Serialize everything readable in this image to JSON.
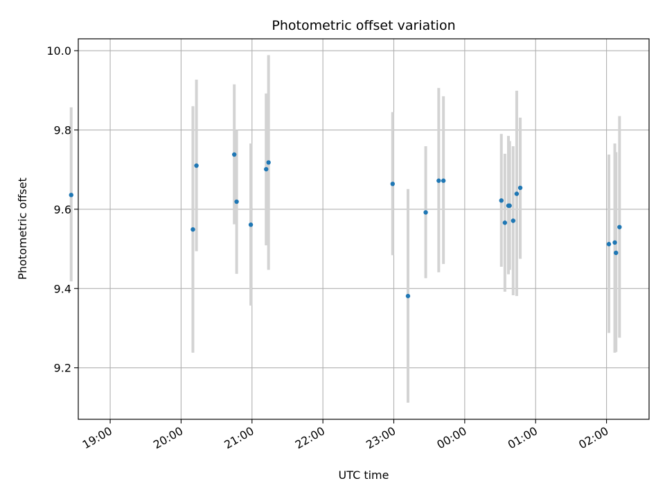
{
  "chart_data": {
    "type": "scatter",
    "title": "Photometric offset variation",
    "xlabel": "UTC time",
    "ylabel": "Photometric offset",
    "xlim": [
      "18:33",
      "02:36"
    ],
    "ylim": [
      9.07,
      10.03
    ],
    "grid": true,
    "x_ticks": [
      "19:00",
      "20:00",
      "21:00",
      "22:00",
      "23:00",
      "00:00",
      "01:00",
      "02:00"
    ],
    "y_ticks": [
      9.2,
      9.4,
      9.6,
      9.8,
      10.0
    ],
    "y_tick_labels": [
      "9.2",
      "9.4",
      "9.6",
      "9.8",
      "10.0"
    ],
    "colors": {
      "point": "#1f77b4",
      "errorbar": "#d3d3d3",
      "grid": "#b0b0b0",
      "axis": "#000000"
    },
    "points": [
      {
        "time": "18:27",
        "y": 9.636,
        "yerr_low": 9.418,
        "yerr_high": 9.857
      },
      {
        "time": "20:10",
        "y": 9.549,
        "yerr_low": 9.238,
        "yerr_high": 9.86
      },
      {
        "time": "20:13",
        "y": 9.71,
        "yerr_low": 9.494,
        "yerr_high": 9.927
      },
      {
        "time": "20:45",
        "y": 9.738,
        "yerr_low": 9.562,
        "yerr_high": 9.915
      },
      {
        "time": "20:47",
        "y": 9.619,
        "yerr_low": 9.437,
        "yerr_high": 9.8
      },
      {
        "time": "20:59",
        "y": 9.561,
        "yerr_low": 9.357,
        "yerr_high": 9.766
      },
      {
        "time": "21:12",
        "y": 9.701,
        "yerr_low": 9.509,
        "yerr_high": 9.892
      },
      {
        "time": "21:14",
        "y": 9.718,
        "yerr_low": 9.447,
        "yerr_high": 9.989
      },
      {
        "time": "22:59",
        "y": 9.664,
        "yerr_low": 9.484,
        "yerr_high": 9.845
      },
      {
        "time": "23:12",
        "y": 9.381,
        "yerr_low": 9.112,
        "yerr_high": 9.651
      },
      {
        "time": "23:27",
        "y": 9.592,
        "yerr_low": 9.426,
        "yerr_high": 9.759
      },
      {
        "time": "23:38",
        "y": 9.672,
        "yerr_low": 9.441,
        "yerr_high": 9.906
      },
      {
        "time": "23:42",
        "y": 9.672,
        "yerr_low": 9.462,
        "yerr_high": 9.885
      },
      {
        "time": "00:31",
        "y": 9.622,
        "yerr_low": 9.455,
        "yerr_high": 9.79
      },
      {
        "time": "00:34",
        "y": 9.566,
        "yerr_low": 9.392,
        "yerr_high": 9.74
      },
      {
        "time": "00:37",
        "y": 9.609,
        "yerr_low": 9.436,
        "yerr_high": 9.785
      },
      {
        "time": "00:38",
        "y": 9.609,
        "yerr_low": 9.447,
        "yerr_high": 9.772
      },
      {
        "time": "00:41",
        "y": 9.571,
        "yerr_low": 9.383,
        "yerr_high": 9.759
      },
      {
        "time": "00:44",
        "y": 9.639,
        "yerr_low": 9.381,
        "yerr_high": 9.899
      },
      {
        "time": "00:47",
        "y": 9.654,
        "yerr_low": 9.475,
        "yerr_high": 9.831
      },
      {
        "time": "02:02",
        "y": 9.512,
        "yerr_low": 9.288,
        "yerr_high": 9.738
      },
      {
        "time": "02:07",
        "y": 9.516,
        "yerr_low": 9.238,
        "yerr_high": 9.766
      },
      {
        "time": "02:08",
        "y": 9.49,
        "yerr_low": 9.24,
        "yerr_high": 9.744
      },
      {
        "time": "02:11",
        "y": 9.555,
        "yerr_low": 9.276,
        "yerr_high": 9.835
      }
    ]
  }
}
